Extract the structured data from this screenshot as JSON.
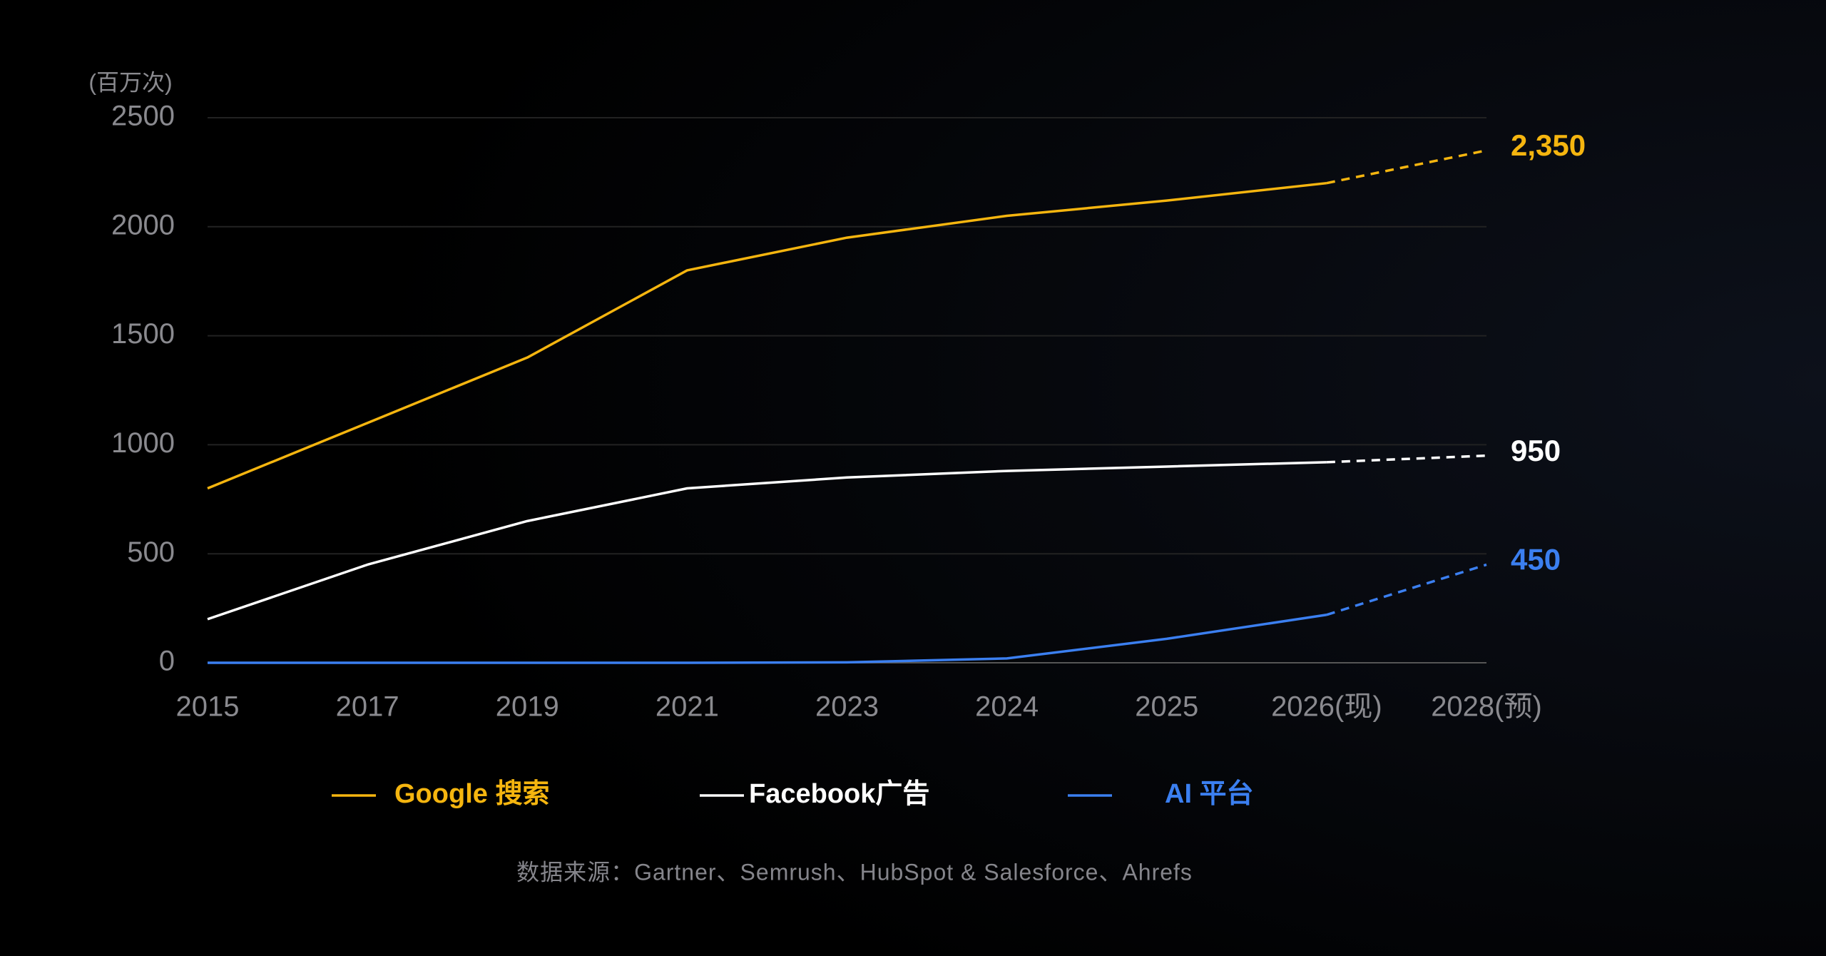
{
  "chart_data": {
    "type": "line",
    "y_label": "(百万次)",
    "categories": [
      "2015",
      "2017",
      "2019",
      "2021",
      "2023",
      "2024",
      "2025",
      "2026(现)",
      "2028(预)"
    ],
    "series": [
      {
        "name": "Google 搜索",
        "color": "#f5b50f",
        "values": [
          800,
          1100,
          1400,
          1800,
          1950,
          2050,
          2120,
          2200,
          2350
        ],
        "value_labels": [
          null,
          null,
          null,
          null,
          null,
          null,
          null,
          null,
          "2,350"
        ]
      },
      {
        "name": "Facebook广告",
        "color": "#ffffff",
        "values": [
          200,
          450,
          650,
          800,
          850,
          880,
          900,
          920,
          950
        ],
        "value_labels": [
          null,
          null,
          null,
          null,
          null,
          null,
          null,
          null,
          "950"
        ]
      },
      {
        "name": "AI 平台",
        "color": "#3b7ff0",
        "values": [
          0,
          0,
          0,
          0,
          2,
          20,
          110,
          220,
          450
        ],
        "value_labels": [
          null,
          null,
          null,
          null,
          null,
          null,
          null,
          null,
          "450"
        ]
      }
    ],
    "ylim": [
      0,
      2500
    ],
    "yticks": [
      0,
      500,
      1000,
      1500,
      2000,
      2500
    ],
    "grid": true,
    "source": "数据来源：Gartner、Semrush、HubSpot & Salesforce、Ahrefs"
  }
}
